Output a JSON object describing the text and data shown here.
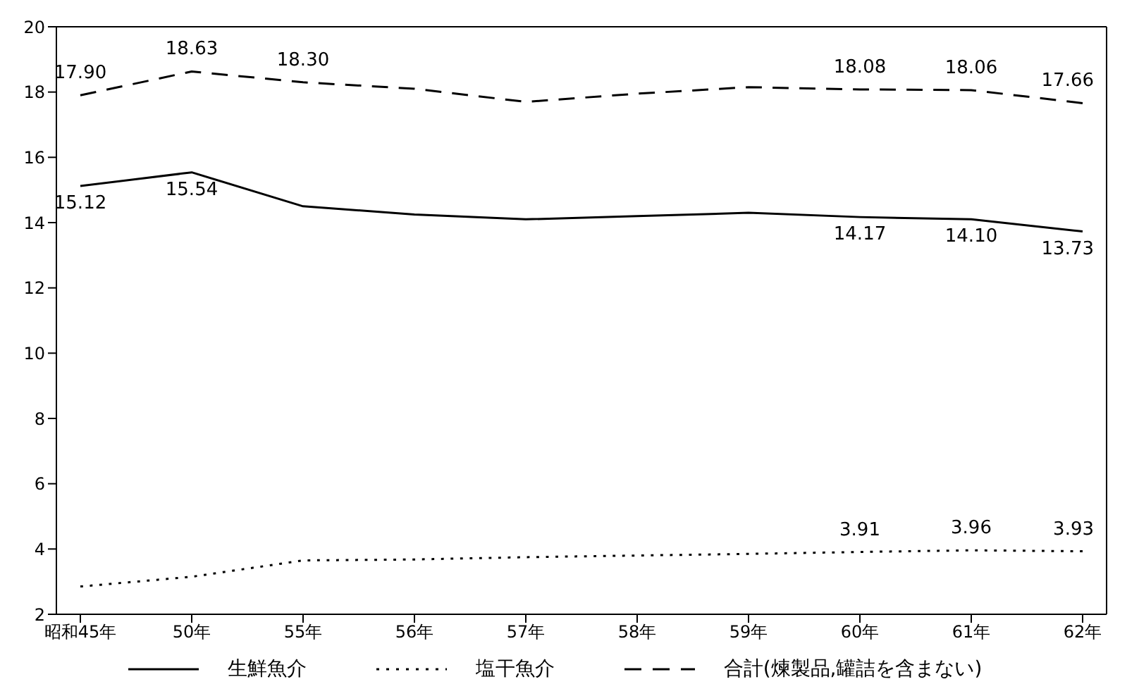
{
  "chart_data": {
    "type": "line",
    "categories": [
      "昭和45年",
      "50年",
      "55年",
      "56年",
      "57年",
      "58年",
      "59年",
      "60年",
      "61年",
      "62年"
    ],
    "series": [
      {
        "name": "生鮮魚介",
        "color": "#000000",
        "line_style": "solid",
        "values": [
          15.12,
          15.54,
          14.5,
          14.25,
          14.1,
          14.2,
          14.3,
          14.17,
          14.1,
          13.73
        ],
        "value_labels": [
          "15.12",
          "15.54",
          null,
          null,
          null,
          null,
          null,
          "14.17",
          "14.10",
          "13.73"
        ]
      },
      {
        "name": "塩干魚介",
        "color": "#000000",
        "line_style": "dotted",
        "values": [
          2.85,
          3.15,
          3.65,
          3.68,
          3.75,
          3.8,
          3.85,
          3.91,
          3.96,
          3.93
        ],
        "value_labels": [
          null,
          null,
          null,
          null,
          null,
          null,
          null,
          "3.91",
          "3.96",
          "3.93"
        ]
      },
      {
        "name": "合計(煉製品,罐詰を含まない)",
        "color": "#000000",
        "line_style": "dashed",
        "values": [
          17.9,
          18.63,
          18.3,
          18.1,
          17.7,
          17.95,
          18.15,
          18.08,
          18.06,
          17.66
        ],
        "value_labels": [
          "17.90",
          "18.63",
          "18.30",
          null,
          null,
          null,
          null,
          "18.08",
          "18.06",
          "17.66"
        ]
      }
    ],
    "ylim": [
      2,
      20
    ],
    "yticks": [
      2,
      4,
      6,
      8,
      10,
      12,
      14,
      16,
      18,
      20
    ],
    "grid": false,
    "legend": "bottom",
    "marker": "none"
  }
}
